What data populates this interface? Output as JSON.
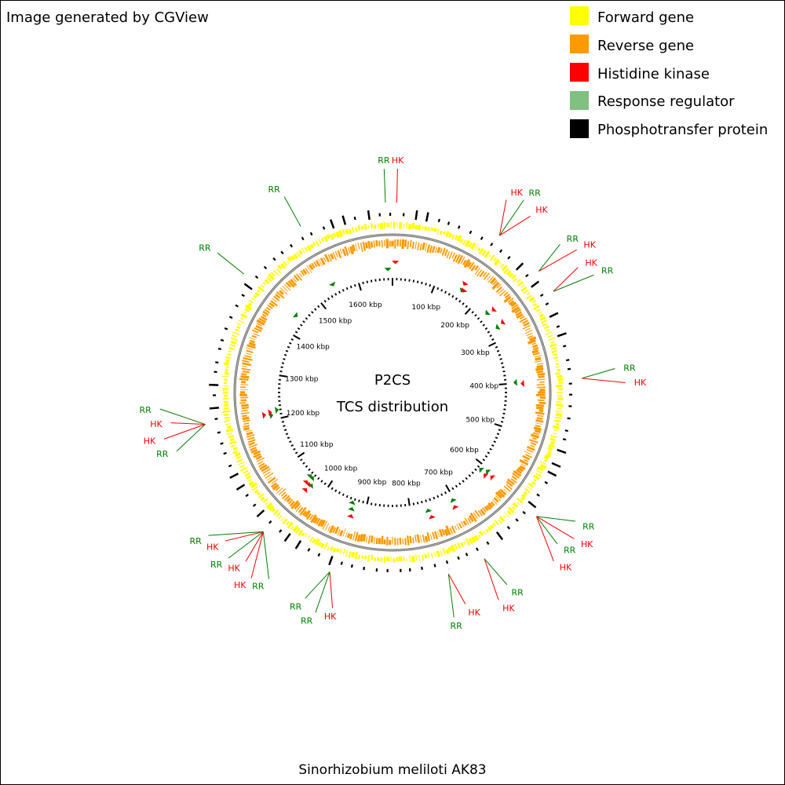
{
  "header": {
    "credit": "Image generated by CGView"
  },
  "legend": [
    {
      "label": "Forward gene",
      "color": "#ffff00"
    },
    {
      "label": "Reverse gene",
      "color": "#ff9900"
    },
    {
      "label": "Histidine kinase",
      "color": "#ff0000"
    },
    {
      "label": "Response regulator",
      "color": "#80c080"
    },
    {
      "label": "Phosphotransfer protein",
      "color": "#000000"
    }
  ],
  "center": {
    "line1": "P2CS",
    "line2": "TCS distribution"
  },
  "footer": {
    "organism": "Sinorhizobium meliloti AK83"
  },
  "genome": {
    "length_kbp": 1680,
    "tick_labels": [
      "100 kbp",
      "200 kbp",
      "300 kbp",
      "400 kbp",
      "500 kbp",
      "600 kbp",
      "700 kbp",
      "800 kbp",
      "900 kbp",
      "1000 kbp",
      "1100 kbp",
      "1200 kbp",
      "1300 kbp",
      "1400 kbp",
      "1500 kbp",
      "1600 kbp"
    ]
  },
  "colors": {
    "hk": "#ff0000",
    "rr": "#008000",
    "backbone": "#808080"
  },
  "features": [
    {
      "pos_kbp": 6,
      "labels": [
        "HK"
      ]
    },
    {
      "pos_kbp": 1670,
      "labels": [
        "RR"
      ]
    },
    {
      "pos_kbp": 160,
      "labels": [
        "HK",
        "RR",
        "HK"
      ]
    },
    {
      "pos_kbp": 235,
      "labels": [
        "RR",
        "HK"
      ]
    },
    {
      "pos_kbp": 270,
      "labels": [
        "HK",
        "RR"
      ]
    },
    {
      "pos_kbp": 400,
      "labels": [
        "RR",
        "HK"
      ]
    },
    {
      "pos_kbp": 610,
      "labels": [
        "RR",
        "HK",
        "RR",
        "HK"
      ]
    },
    {
      "pos_kbp": 705,
      "labels": [
        "RR",
        "HK"
      ]
    },
    {
      "pos_kbp": 760,
      "labels": [
        "HK",
        "RR"
      ]
    },
    {
      "pos_kbp": 930,
      "labels": [
        "HK",
        "RR",
        "RR"
      ]
    },
    {
      "pos_kbp": 1040,
      "labels": [
        "RR",
        "HK",
        "HK",
        "RR",
        "HK",
        "RR"
      ]
    },
    {
      "pos_kbp": 1215,
      "labels": [
        "RR",
        "HK",
        "HK",
        "RR"
      ]
    },
    {
      "pos_kbp": 1440,
      "labels": [
        "RR"
      ]
    },
    {
      "pos_kbp": 1545,
      "labels": [
        "RR"
      ]
    }
  ]
}
